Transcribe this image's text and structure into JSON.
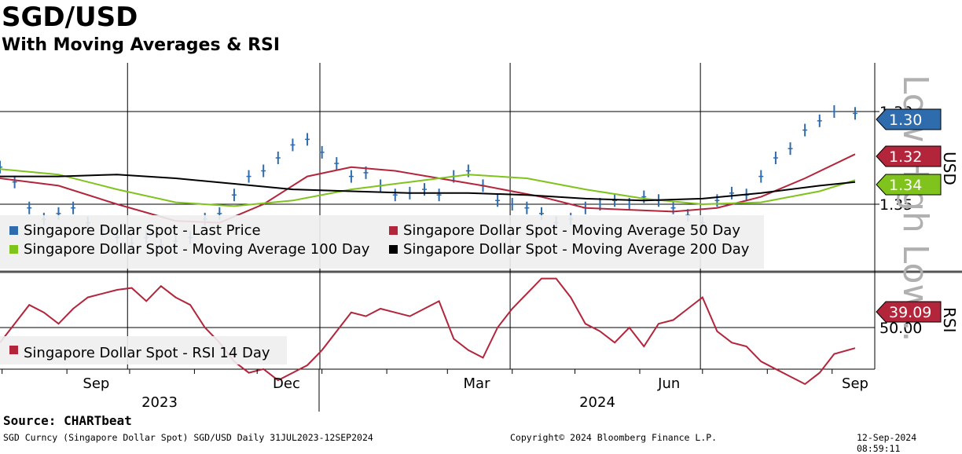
{
  "header": {
    "title": "SGD/USD",
    "subtitle": "With Moving Averages & RSI"
  },
  "chart_data": [
    {
      "type": "line",
      "panel": "price",
      "ylabel": "USD",
      "y_axis_inverted": true,
      "ylim": [
        1.4,
        1.275
      ],
      "y_ticks": [
        1.3,
        1.35
      ],
      "y_tick_labels": [
        "1.30",
        "1.35"
      ],
      "x_months": [
        "Sep",
        "Dec",
        "Mar",
        "Jun",
        "Sep"
      ],
      "x_years": [
        "2023",
        "2024"
      ],
      "x_range": [
        "2023-07-31",
        "2024-09-12"
      ],
      "grid": true,
      "legend_position": "bottom-left",
      "watermark": "Low High Low...",
      "series": [
        {
          "name": "Singapore Dollar Spot - Last Price",
          "color": "#2e6cad",
          "style": "bar",
          "last_value_label": "1.30",
          "values": [
            [
              "2023-07-31",
              1.33
            ],
            [
              "2023-08-07",
              1.338
            ],
            [
              "2023-08-14",
              1.352
            ],
            [
              "2023-08-21",
              1.358
            ],
            [
              "2023-08-28",
              1.355
            ],
            [
              "2023-09-04",
              1.352
            ],
            [
              "2023-09-11",
              1.36
            ],
            [
              "2023-09-18",
              1.364
            ],
            [
              "2023-09-25",
              1.368
            ],
            [
              "2023-10-02",
              1.371
            ],
            [
              "2023-10-09",
              1.368
            ],
            [
              "2023-10-16",
              1.372
            ],
            [
              "2023-10-23",
              1.37
            ],
            [
              "2023-10-30",
              1.368
            ],
            [
              "2023-11-06",
              1.358
            ],
            [
              "2023-11-13",
              1.355
            ],
            [
              "2023-11-20",
              1.345
            ],
            [
              "2023-11-27",
              1.335
            ],
            [
              "2023-12-04",
              1.332
            ],
            [
              "2023-12-11",
              1.325
            ],
            [
              "2023-12-18",
              1.318
            ],
            [
              "2023-12-25",
              1.315
            ],
            [
              "2024-01-01",
              1.322
            ],
            [
              "2024-01-08",
              1.328
            ],
            [
              "2024-01-15",
              1.335
            ],
            [
              "2024-01-22",
              1.333
            ],
            [
              "2024-01-29",
              1.34
            ],
            [
              "2024-02-05",
              1.345
            ],
            [
              "2024-02-12",
              1.344
            ],
            [
              "2024-02-19",
              1.342
            ],
            [
              "2024-02-26",
              1.345
            ],
            [
              "2024-03-04",
              1.335
            ],
            [
              "2024-03-11",
              1.332
            ],
            [
              "2024-03-18",
              1.34
            ],
            [
              "2024-03-25",
              1.348
            ],
            [
              "2024-04-01",
              1.35
            ],
            [
              "2024-04-08",
              1.352
            ],
            [
              "2024-04-15",
              1.355
            ],
            [
              "2024-04-22",
              1.36
            ],
            [
              "2024-04-29",
              1.358
            ],
            [
              "2024-05-06",
              1.352
            ],
            [
              "2024-05-13",
              1.35
            ],
            [
              "2024-05-20",
              1.348
            ],
            [
              "2024-05-27",
              1.35
            ],
            [
              "2024-06-03",
              1.346
            ],
            [
              "2024-06-10",
              1.348
            ],
            [
              "2024-06-17",
              1.352
            ],
            [
              "2024-06-24",
              1.356
            ],
            [
              "2024-07-01",
              1.36
            ],
            [
              "2024-07-08",
              1.348
            ],
            [
              "2024-07-15",
              1.344
            ],
            [
              "2024-07-22",
              1.345
            ],
            [
              "2024-07-29",
              1.335
            ],
            [
              "2024-08-05",
              1.325
            ],
            [
              "2024-08-12",
              1.32
            ],
            [
              "2024-08-19",
              1.31
            ],
            [
              "2024-08-26",
              1.305
            ],
            [
              "2024-09-02",
              1.3
            ],
            [
              "2024-09-12",
              1.301
            ]
          ]
        },
        {
          "name": "Singapore Dollar Spot - Moving Average 50 Day",
          "color": "#b3253b",
          "style": "line",
          "last_value_label": "1.32",
          "values": [
            [
              "2023-07-31",
              1.336
            ],
            [
              "2023-08-28",
              1.34
            ],
            [
              "2023-09-25",
              1.35
            ],
            [
              "2023-10-23",
              1.359
            ],
            [
              "2023-11-13",
              1.36
            ],
            [
              "2023-12-04",
              1.35
            ],
            [
              "2023-12-25",
              1.335
            ],
            [
              "2024-01-15",
              1.33
            ],
            [
              "2024-02-05",
              1.332
            ],
            [
              "2024-02-26",
              1.336
            ],
            [
              "2024-03-18",
              1.34
            ],
            [
              "2024-04-15",
              1.346
            ],
            [
              "2024-05-06",
              1.352
            ],
            [
              "2024-05-27",
              1.353
            ],
            [
              "2024-06-17",
              1.354
            ],
            [
              "2024-07-08",
              1.352
            ],
            [
              "2024-07-29",
              1.346
            ],
            [
              "2024-08-19",
              1.336
            ],
            [
              "2024-09-12",
              1.323
            ]
          ]
        },
        {
          "name": "Singapore Dollar Spot - Moving Average 100 Day",
          "color": "#7fc31c",
          "style": "line",
          "last_value_label": "1.34",
          "values": [
            [
              "2023-07-31",
              1.331
            ],
            [
              "2023-08-28",
              1.334
            ],
            [
              "2023-09-25",
              1.342
            ],
            [
              "2023-10-23",
              1.349
            ],
            [
              "2023-11-20",
              1.351
            ],
            [
              "2023-12-18",
              1.348
            ],
            [
              "2024-01-15",
              1.342
            ],
            [
              "2024-02-12",
              1.338
            ],
            [
              "2024-03-11",
              1.334
            ],
            [
              "2024-04-08",
              1.336
            ],
            [
              "2024-05-06",
              1.342
            ],
            [
              "2024-06-03",
              1.347
            ],
            [
              "2024-07-01",
              1.35
            ],
            [
              "2024-07-29",
              1.349
            ],
            [
              "2024-08-26",
              1.343
            ],
            [
              "2024-09-12",
              1.337
            ]
          ]
        },
        {
          "name": "Singapore Dollar Spot - Moving Average 200 Day",
          "color": "#000000",
          "style": "line",
          "values": [
            [
              "2023-07-31",
              1.335
            ],
            [
              "2023-08-28",
              1.335
            ],
            [
              "2023-09-25",
              1.334
            ],
            [
              "2023-10-23",
              1.336
            ],
            [
              "2023-11-20",
              1.339
            ],
            [
              "2023-12-18",
              1.342
            ],
            [
              "2024-01-15",
              1.343
            ],
            [
              "2024-02-12",
              1.344
            ],
            [
              "2024-03-11",
              1.344
            ],
            [
              "2024-04-08",
              1.345
            ],
            [
              "2024-05-06",
              1.347
            ],
            [
              "2024-06-03",
              1.348
            ],
            [
              "2024-07-01",
              1.347
            ],
            [
              "2024-07-29",
              1.344
            ],
            [
              "2024-08-26",
              1.34
            ],
            [
              "2024-09-12",
              1.338
            ]
          ]
        }
      ]
    },
    {
      "type": "line",
      "panel": "rsi",
      "ylabel": "RSI",
      "y_axis_inverted": true,
      "ylim": [
        85,
        5
      ],
      "y_ticks": [
        50
      ],
      "y_tick_labels": [
        "50.00"
      ],
      "legend_position": "bottom-left",
      "series": [
        {
          "name": "Singapore Dollar Spot - RSI 14 Day",
          "color": "#b3253b",
          "last_value_label": "39.09",
          "values": [
            [
              "2023-07-31",
              42
            ],
            [
              "2023-08-07",
              52
            ],
            [
              "2023-08-14",
              62
            ],
            [
              "2023-08-21",
              58
            ],
            [
              "2023-08-28",
              52
            ],
            [
              "2023-09-04",
              60
            ],
            [
              "2023-09-11",
              66
            ],
            [
              "2023-09-18",
              68
            ],
            [
              "2023-09-25",
              70
            ],
            [
              "2023-10-02",
              71
            ],
            [
              "2023-10-09",
              64
            ],
            [
              "2023-10-16",
              72
            ],
            [
              "2023-10-23",
              66
            ],
            [
              "2023-10-30",
              62
            ],
            [
              "2023-11-06",
              50
            ],
            [
              "2023-11-13",
              42
            ],
            [
              "2023-11-20",
              32
            ],
            [
              "2023-11-27",
              26
            ],
            [
              "2023-12-04",
              28
            ],
            [
              "2023-12-11",
              22
            ],
            [
              "2023-12-18",
              26
            ],
            [
              "2023-12-25",
              30
            ],
            [
              "2024-01-01",
              38
            ],
            [
              "2024-01-08",
              48
            ],
            [
              "2024-01-15",
              58
            ],
            [
              "2024-01-22",
              56
            ],
            [
              "2024-01-29",
              60
            ],
            [
              "2024-02-05",
              58
            ],
            [
              "2024-02-12",
              56
            ],
            [
              "2024-02-19",
              60
            ],
            [
              "2024-02-26",
              64
            ],
            [
              "2024-03-04",
              44
            ],
            [
              "2024-03-11",
              38
            ],
            [
              "2024-03-18",
              34
            ],
            [
              "2024-03-25",
              50
            ],
            [
              "2024-04-01",
              60
            ],
            [
              "2024-04-08",
              68
            ],
            [
              "2024-04-15",
              76
            ],
            [
              "2024-04-22",
              76
            ],
            [
              "2024-04-29",
              66
            ],
            [
              "2024-05-06",
              52
            ],
            [
              "2024-05-13",
              48
            ],
            [
              "2024-05-20",
              42
            ],
            [
              "2024-05-27",
              50
            ],
            [
              "2024-06-03",
              40
            ],
            [
              "2024-06-10",
              52
            ],
            [
              "2024-06-17",
              54
            ],
            [
              "2024-06-24",
              60
            ],
            [
              "2024-07-01",
              66
            ],
            [
              "2024-07-08",
              48
            ],
            [
              "2024-07-15",
              42
            ],
            [
              "2024-07-22",
              40
            ],
            [
              "2024-07-29",
              32
            ],
            [
              "2024-08-05",
              28
            ],
            [
              "2024-08-12",
              24
            ],
            [
              "2024-08-19",
              20
            ],
            [
              "2024-08-26",
              26
            ],
            [
              "2024-09-02",
              36
            ],
            [
              "2024-09-12",
              39.09
            ]
          ]
        }
      ]
    }
  ],
  "footer": {
    "source": "Source: CHARTbeat",
    "ticker": "SGD Curncy (Singapore Dollar Spot) SGD/USD  Daily 31JUL2023-12SEP2024",
    "copyright": "Copyright© 2024 Bloomberg Finance L.P.",
    "timestamp": "12-Sep-2024 08:59:11"
  }
}
